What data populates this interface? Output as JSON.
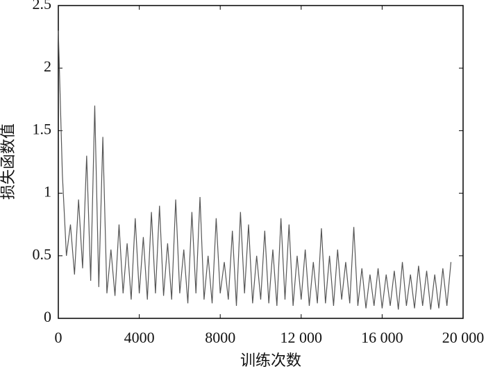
{
  "chart_data": {
    "type": "line",
    "xlabel": "训练次数",
    "ylabel": "损失函数值",
    "x": [
      0,
      200,
      400,
      600,
      800,
      1000,
      1200,
      1400,
      1600,
      1800,
      2000,
      2200,
      2400,
      2600,
      2800,
      3000,
      3200,
      3400,
      3600,
      3800,
      4000,
      4200,
      4400,
      4600,
      4800,
      5000,
      5200,
      5400,
      5600,
      5800,
      6000,
      6200,
      6400,
      6600,
      6800,
      7000,
      7200,
      7400,
      7600,
      7800,
      8000,
      8200,
      8400,
      8600,
      8800,
      9000,
      9200,
      9400,
      9600,
      9800,
      10000,
      10200,
      10400,
      10600,
      10800,
      11000,
      11200,
      11400,
      11600,
      11800,
      12000,
      12200,
      12400,
      12600,
      12800,
      13000,
      13200,
      13400,
      13600,
      13800,
      14000,
      14200,
      14400,
      14600,
      14800,
      15000,
      15200,
      15400,
      15600,
      15800,
      16000,
      16200,
      16400,
      16600,
      16800,
      17000,
      17200,
      17400,
      17600,
      17800,
      18000,
      18200,
      18400,
      18600,
      18800,
      19000,
      19200,
      19400
    ],
    "values": [
      2.3,
      1.15,
      0.5,
      0.75,
      0.35,
      0.95,
      0.4,
      1.3,
      0.3,
      1.7,
      0.25,
      1.45,
      0.2,
      0.55,
      0.18,
      0.75,
      0.2,
      0.6,
      0.15,
      0.8,
      0.2,
      0.65,
      0.15,
      0.85,
      0.2,
      0.9,
      0.18,
      0.6,
      0.15,
      0.95,
      0.2,
      0.55,
      0.12,
      0.85,
      0.2,
      0.97,
      0.15,
      0.5,
      0.12,
      0.8,
      0.2,
      0.45,
      0.15,
      0.7,
      0.1,
      0.85,
      0.2,
      0.75,
      0.12,
      0.5,
      0.15,
      0.7,
      0.12,
      0.55,
      0.1,
      0.8,
      0.15,
      0.75,
      0.1,
      0.5,
      0.15,
      0.55,
      0.1,
      0.45,
      0.12,
      0.72,
      0.12,
      0.5,
      0.1,
      0.55,
      0.15,
      0.45,
      0.12,
      0.73,
      0.1,
      0.4,
      0.08,
      0.35,
      0.1,
      0.4,
      0.08,
      0.35,
      0.1,
      0.38,
      0.07,
      0.45,
      0.1,
      0.35,
      0.08,
      0.42,
      0.1,
      0.38,
      0.07,
      0.35,
      0.08,
      0.4,
      0.1,
      0.45
    ],
    "color": "#555555",
    "xlim": [
      0,
      20000
    ],
    "xticks": [
      0,
      4000,
      8000,
      {
        "value": 12000,
        "label": "12 000"
      },
      {
        "value": 16000,
        "label": "16 000"
      },
      {
        "value": 20000,
        "label": "20 000"
      }
    ],
    "ylim": [
      0,
      2.5
    ],
    "yticks": [
      0,
      0.5,
      1,
      1.5,
      2,
      2.5
    ]
  }
}
